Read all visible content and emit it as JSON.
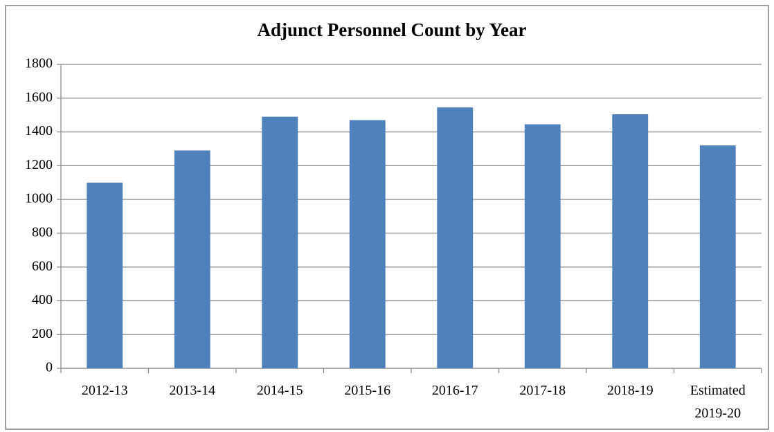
{
  "chart_data": {
    "type": "bar",
    "title": "Adjunct Personnel Count by Year",
    "categories": [
      "2012-13",
      "2013-14",
      "2014-15",
      "2015-16",
      "2016-17",
      "2017-18",
      "2018-19",
      "Estimated 2019-20"
    ],
    "values": [
      1100,
      1290,
      1490,
      1470,
      1545,
      1445,
      1505,
      1320
    ],
    "color": "#4f81bd",
    "ylim": [
      0,
      1800
    ],
    "yticks": [
      0,
      200,
      400,
      600,
      800,
      1000,
      1200,
      1400,
      1600,
      1800
    ],
    "grid": true
  }
}
